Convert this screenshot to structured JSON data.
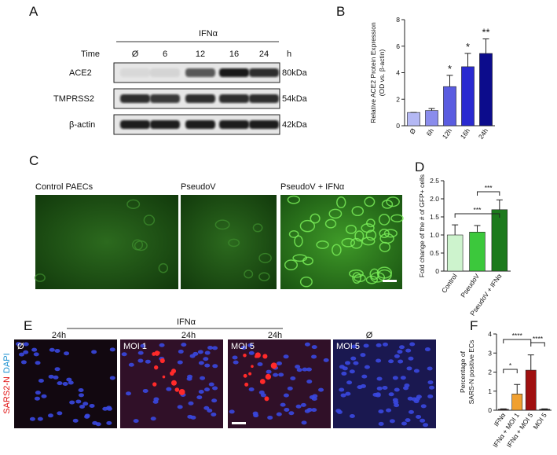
{
  "panels": {
    "A": {
      "label": "A",
      "treatment": "IFNα",
      "time_label": "Time",
      "times": [
        "Ø",
        "6",
        "12",
        "16",
        "24"
      ],
      "unit": "h",
      "rows": [
        {
          "name": "ACE2",
          "size": "80kDa"
        },
        {
          "name": "TMPRSS2",
          "size": "54kDa"
        },
        {
          "name": "β-actin",
          "size": "42kDa"
        }
      ]
    },
    "C": {
      "label": "C",
      "images": [
        {
          "label": "Control PAECs"
        },
        {
          "label": "PseudoV"
        },
        {
          "label": "PseudoV +  IFNα"
        }
      ]
    },
    "E": {
      "label": "E",
      "treatment": "IFNα",
      "stain": [
        "SARS2-N",
        "DAPI"
      ],
      "images": [
        {
          "time": "24h",
          "label": "Ø"
        },
        {
          "time": "24h",
          "label": "MOI 1"
        },
        {
          "time": "24h",
          "label": "MOI 5"
        },
        {
          "time": "Ø",
          "label": "MOI 5"
        }
      ]
    }
  },
  "chart_data": [
    {
      "type": "bar",
      "label": "B",
      "y_label": [
        "Relative ACE2 Protein Expression",
        "(OD vs. β-actin)"
      ],
      "categories": [
        "Ø",
        "6h",
        "12h",
        "16h",
        "24h"
      ],
      "values": [
        1.0,
        1.15,
        2.95,
        4.45,
        5.45
      ],
      "errors": [
        0,
        0.15,
        0.85,
        1.0,
        1.1
      ],
      "colors": [
        "#b4b8f4",
        "#8a8cec",
        "#5a5ce0",
        "#2a2ad0",
        "#0c0c8c"
      ],
      "ylim": [
        0,
        8
      ],
      "yticks": [
        0,
        2,
        4,
        6,
        8
      ],
      "annotations": [
        "*",
        "*",
        "**"
      ]
    },
    {
      "type": "bar",
      "label": "D",
      "y_label": [
        "Fold change of the # of GFP+ cells"
      ],
      "categories": [
        "Control",
        "PseudoV",
        "PseudoV + IFNα"
      ],
      "values": [
        1.0,
        1.08,
        1.7
      ],
      "errors": [
        0.28,
        0.18,
        0.27
      ],
      "colors": [
        "#cdf3cd",
        "#3cc83c",
        "#1c7a1c"
      ],
      "ylim": [
        0,
        2.5
      ],
      "yticks": [
        0,
        0.5,
        {
          "value": 1,
          "label": "1.0"
        },
        1.5,
        {
          "value": 2,
          "label": "2.0"
        },
        2.5
      ],
      "annotations": [
        "***",
        "***"
      ]
    },
    {
      "type": "bar",
      "label": "F",
      "y_label": [
        "Percentage of",
        "SARS-N positive ECs"
      ],
      "categories": [
        "IFNα",
        "IFNα + MOI 1",
        "IFNα + MOI 5",
        "MOI 5"
      ],
      "values": [
        0.05,
        0.85,
        2.1,
        0.05
      ],
      "errors": [
        0.02,
        0.5,
        0.8,
        0.02
      ],
      "colors": [
        "#3a2020",
        "#f0a030",
        "#a01010",
        "#202020"
      ],
      "ylim": [
        0,
        4
      ],
      "yticks": [
        0,
        1,
        2,
        3,
        4
      ],
      "annotations": [
        "*",
        "****",
        "****"
      ]
    }
  ]
}
